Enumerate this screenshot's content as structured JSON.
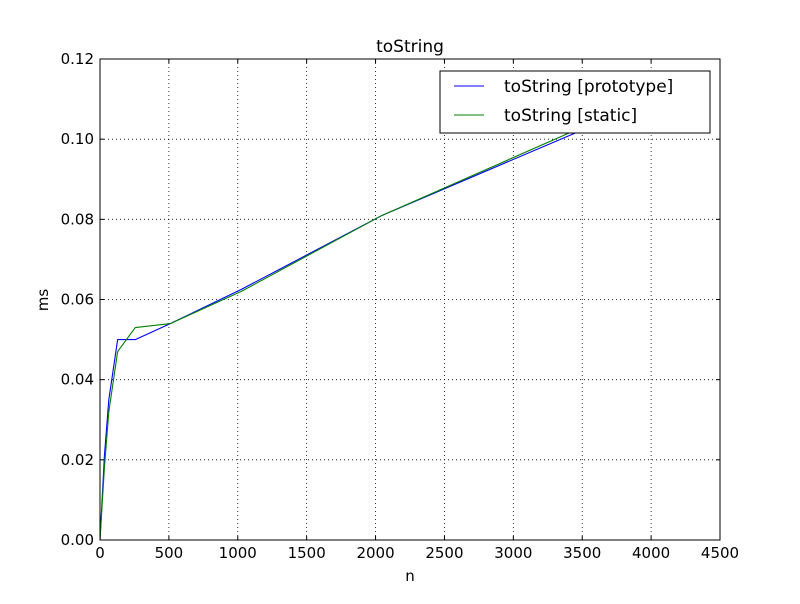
{
  "chart_data": {
    "type": "line",
    "title": "toString",
    "xlabel": "n",
    "ylabel": "ms",
    "xlim": [
      0,
      4500
    ],
    "ylim": [
      0.0,
      0.12
    ],
    "xticks": [
      0,
      500,
      1000,
      1500,
      2000,
      2500,
      3000,
      3500,
      4000,
      4500
    ],
    "yticks": [
      0.0,
      0.02,
      0.04,
      0.06,
      0.08,
      0.1,
      0.12
    ],
    "xtick_labels": [
      "0",
      "500",
      "1000",
      "1500",
      "2000",
      "2500",
      "3000",
      "3500",
      "4000",
      "4500"
    ],
    "ytick_labels": [
      "0.00",
      "0.02",
      "0.04",
      "0.06",
      "0.08",
      "0.10",
      "0.12"
    ],
    "grid": true,
    "legend_position": "top-right",
    "series": [
      {
        "name": "toString [prototype]",
        "color": "#0000ff",
        "x": [
          0,
          32,
          64,
          128,
          256,
          512,
          1024,
          2048,
          4096
        ],
        "y": [
          0.0,
          0.021,
          0.035,
          0.05,
          0.05,
          0.054,
          0.0625,
          0.081,
          0.111
        ]
      },
      {
        "name": "toString [static]",
        "color": "#008000",
        "x": [
          0,
          32,
          64,
          128,
          256,
          512,
          1024,
          2048,
          4096
        ],
        "y": [
          0.0,
          0.018,
          0.032,
          0.047,
          0.053,
          0.054,
          0.062,
          0.081,
          0.112
        ]
      }
    ]
  }
}
